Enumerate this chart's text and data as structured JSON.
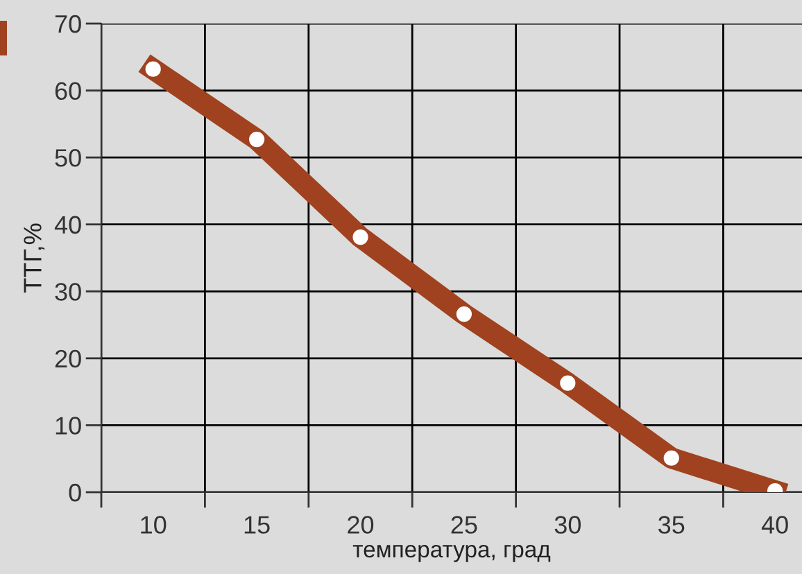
{
  "chart_data": {
    "type": "line",
    "xlabel": "температура, град",
    "ylabel": "ТТГ,%",
    "x": [
      10,
      15,
      20,
      25,
      30,
      35,
      40
    ],
    "series": [
      {
        "color": "#a0421f",
        "values": [
          63.2,
          52.7,
          38.1,
          26.6,
          16.3,
          5.1,
          0.2
        ]
      }
    ],
    "marker": "circle",
    "line_style": "solid",
    "xlim": [
      7.5,
      41.3
    ],
    "ylim": [
      0,
      70
    ],
    "xticks": [
      {
        "value": 7.5,
        "label": null
      },
      10,
      {
        "value": 12.5,
        "label": null
      },
      15,
      {
        "value": 17.5,
        "label": null
      },
      20,
      {
        "value": 22.5,
        "label": null
      },
      25,
      {
        "value": 27.5,
        "label": null
      },
      30,
      {
        "value": 32.5,
        "label": null
      },
      35,
      {
        "value": 37.5,
        "label": null
      },
      40
    ],
    "yticks": [
      0,
      10,
      20,
      30,
      40,
      50,
      60,
      70
    ],
    "grid": true
  }
}
